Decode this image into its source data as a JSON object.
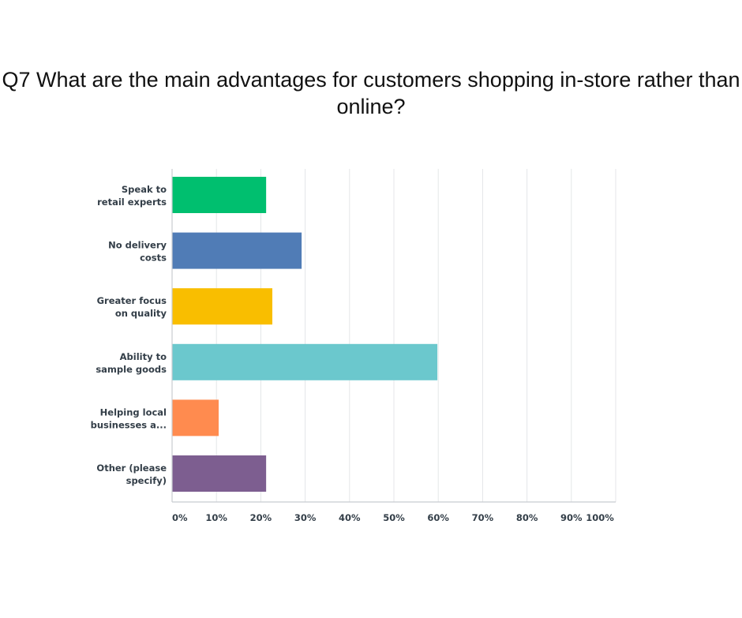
{
  "title": "Q7 What are the main advantages for customers shopping in-store rather than online?",
  "chart_data": {
    "type": "bar",
    "orientation": "horizontal",
    "title": "Q7 What are the main advantages for customers shopping in-store rather than online?",
    "categories": [
      [
        "Speak to",
        "retail experts"
      ],
      [
        "No delivery",
        "costs"
      ],
      [
        "Greater focus",
        "on quality"
      ],
      [
        "Ability to",
        "sample goods"
      ],
      [
        "Helping local",
        "businesses a..."
      ],
      [
        "Other (please",
        "specify)"
      ]
    ],
    "values": [
      21.2,
      29.2,
      22.6,
      59.8,
      10.5,
      21.2
    ],
    "colors": [
      "#00BF6F",
      "#507CB6",
      "#F9BE00",
      "#6BC8CD",
      "#FF8B4F",
      "#7D5E90"
    ],
    "xlim": [
      0,
      100
    ],
    "xticks": [
      "0%",
      "10%",
      "20%",
      "30%",
      "40%",
      "50%",
      "60%",
      "70%",
      "80%",
      "90%",
      "100%"
    ],
    "grid": true,
    "xlabel": "",
    "ylabel": ""
  }
}
